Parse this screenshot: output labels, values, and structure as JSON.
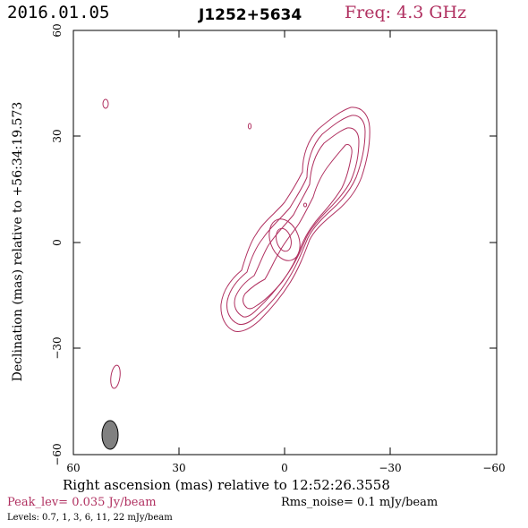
{
  "header": {
    "date": "2016.01.05",
    "source": "J1252+5634",
    "frequency": "Freq: 4.3 GHz"
  },
  "colors": {
    "contour": "#b03060",
    "beam": "#808080",
    "axes": "#000000"
  },
  "axes": {
    "x_label": "Right ascension (mas) relative to 12:52:26.3558",
    "y_label": "Declination (mas) relative to +56:34:19.573",
    "x_range": [
      60,
      -60
    ],
    "y_range": [
      -60,
      60
    ],
    "x_ticks": [
      "60",
      "30",
      "0",
      "−30",
      "−60"
    ],
    "y_ticks": [
      "60",
      "30",
      "0",
      "−30",
      "−60"
    ]
  },
  "footer": {
    "peak": "Peak_lev=  0.035 Jy/beam",
    "rms": "Rms_noise=  0.1 mJy/beam",
    "levels": "Levels: 0.7,   1,   3,   6,  11,  22 mJy/beam"
  }
}
